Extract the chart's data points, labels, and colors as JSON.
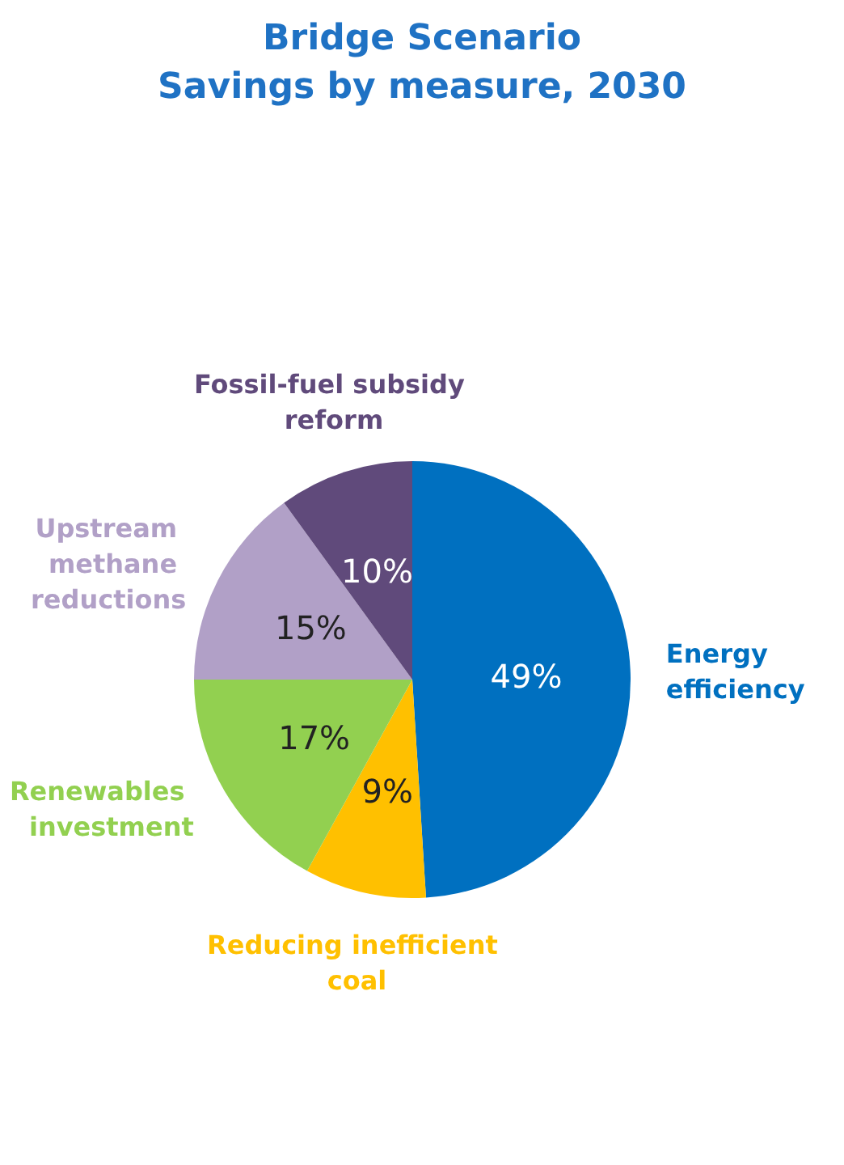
{
  "chart_data": {
    "type": "pie",
    "title": "Bridge Scenario",
    "subtitle": "Savings by measure, 2030",
    "categories": [
      "Energy efficiency",
      "Reducing inefficient coal",
      "Renewables investment",
      "Upstream methane reductions",
      "Fossil-fuel subsidy reform"
    ],
    "values": [
      49,
      9,
      17,
      15,
      10
    ],
    "colors": [
      "#0070c0",
      "#ffc000",
      "#92d050",
      "#b1a0c7",
      "#604a7b"
    ],
    "value_labels": [
      "49%",
      "9%",
      "17%",
      "15%",
      "10%"
    ],
    "legend": false
  }
}
